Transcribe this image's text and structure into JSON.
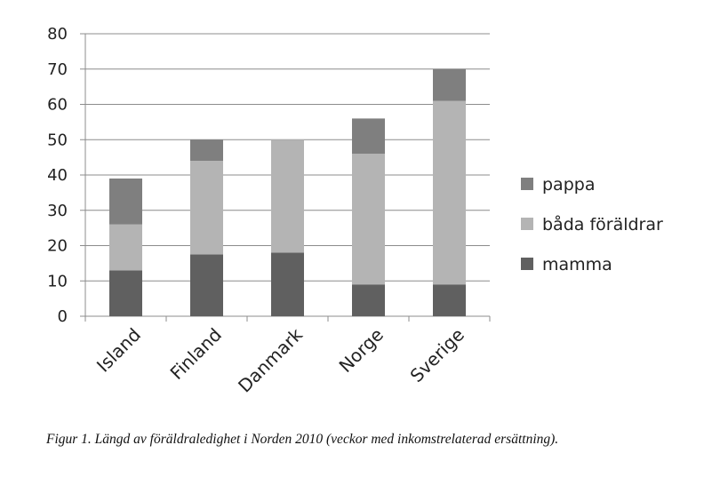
{
  "chart_data": {
    "type": "bar",
    "stacked": true,
    "categories": [
      "Island",
      "Finland",
      "Danmark",
      "Norge",
      "Sverige"
    ],
    "series": [
      {
        "name": "mamma",
        "values": [
          13,
          17.5,
          18,
          9,
          9
        ],
        "color": "#606060"
      },
      {
        "name": "båda föräldrar",
        "values": [
          13,
          26.5,
          32,
          37,
          52
        ],
        "color": "#b4b4b4"
      },
      {
        "name": "pappa",
        "values": [
          13,
          6,
          0,
          10,
          9
        ],
        "color": "#7f7f7f"
      }
    ],
    "ylim": [
      0,
      80
    ],
    "yticks": [
      0,
      10,
      20,
      30,
      40,
      50,
      60,
      70,
      80
    ],
    "grid": true,
    "legend_position": "right",
    "legend_order": [
      "pappa",
      "båda föräldrar",
      "mamma"
    ]
  },
  "caption": "Figur 1. Längd av föräldraledighet i Norden 2010 (veckor med inkomstrelaterad ersättning)."
}
